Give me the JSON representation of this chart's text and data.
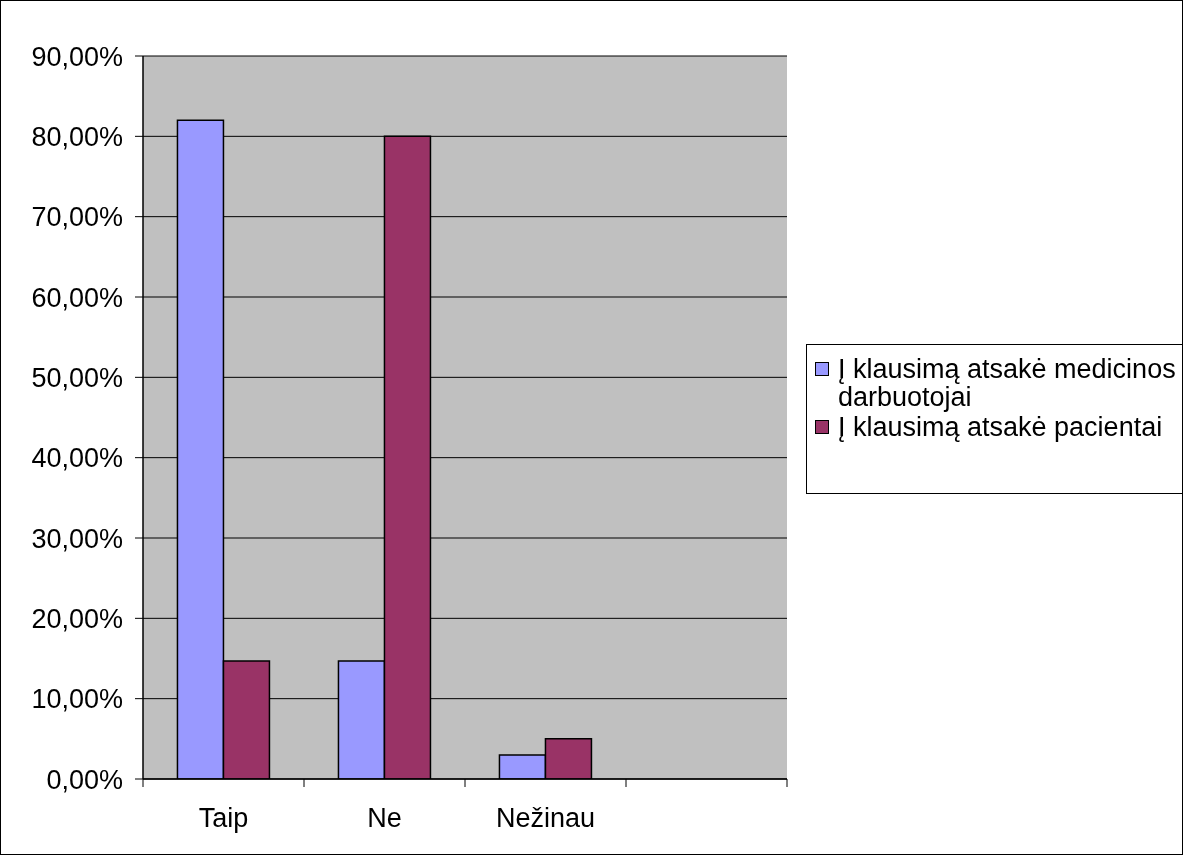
{
  "chart_data": {
    "type": "bar",
    "categories": [
      "Taip",
      "Ne",
      "Nežinau",
      null
    ],
    "series": [
      {
        "name": "Į klausimą atsakė medicinos darbuotojai",
        "color": "#9999ff",
        "values": [
          82,
          14.7,
          3,
          null
        ]
      },
      {
        "name": "Į klausimą atsakė pacientai",
        "color": "#993366",
        "values": [
          14.7,
          80,
          5,
          null
        ]
      }
    ],
    "ylim": [
      0,
      90
    ],
    "yticks": [
      {
        "value": 0,
        "label": "0,00%"
      },
      {
        "value": 10,
        "label": "10,00%"
      },
      {
        "value": 20,
        "label": "20,00%"
      },
      {
        "value": 30,
        "label": "30,00%"
      },
      {
        "value": 40,
        "label": "40,00%"
      },
      {
        "value": 50,
        "label": "50,00%"
      },
      {
        "value": 60,
        "label": "60,00%"
      },
      {
        "value": 70,
        "label": "70,00%"
      },
      {
        "value": 80,
        "label": "80,00%"
      },
      {
        "value": 90,
        "label": "90,00%"
      }
    ],
    "grid": "y",
    "legend": "right"
  }
}
